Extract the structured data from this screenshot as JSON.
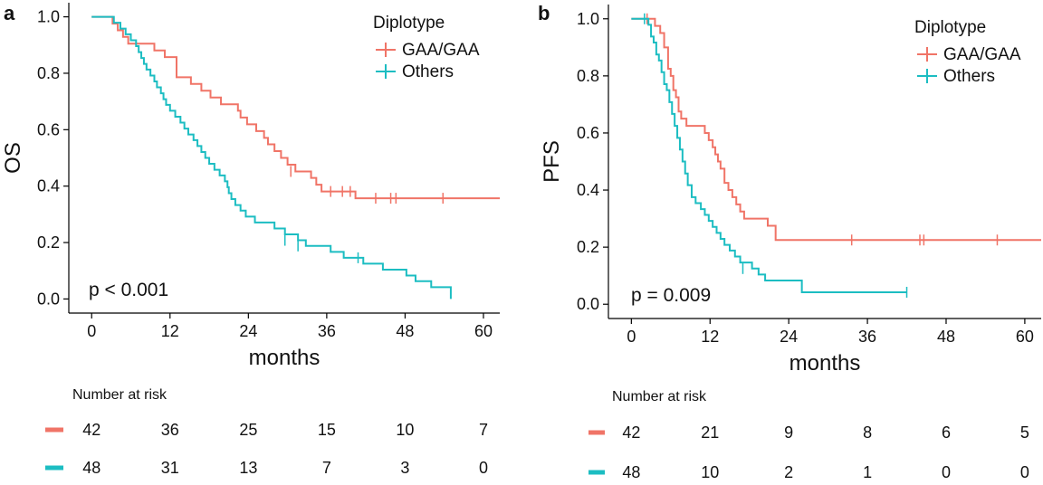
{
  "colors": {
    "gaa": "#F07467",
    "others": "#1CBDC2"
  },
  "chart_data": [
    {
      "type": "line",
      "panel": "a",
      "xlabel": "months",
      "ylabel": "OS",
      "xlim": [
        -3.5,
        62.5
      ],
      "ylim": [
        -0.05,
        1.05
      ],
      "x_ticks": [
        0,
        12,
        24,
        36,
        48,
        60
      ],
      "x_tick_labels": [
        "0",
        "12",
        "24",
        "36",
        "48",
        "60"
      ],
      "y_ticks": [
        0.0,
        0.2,
        0.4,
        0.6,
        0.8,
        1.0
      ],
      "y_tick_labels": [
        "0.0",
        "0.2",
        "0.4",
        "0.6",
        "0.8",
        "1.0"
      ],
      "legend_title": "Diplotype",
      "legend_position": "top-right",
      "p_value_text": "p < 0.001",
      "series": [
        {
          "name": "GAA/GAA",
          "color_key": "gaa",
          "steps": [
            [
              0,
              1.0
            ],
            [
              3.2,
              0.976
            ],
            [
              4.0,
              0.952
            ],
            [
              4.8,
              0.929
            ],
            [
              5.6,
              0.905
            ],
            [
              9.6,
              0.881
            ],
            [
              11.2,
              0.857
            ],
            [
              13.0,
              0.786
            ],
            [
              15.2,
              0.762
            ],
            [
              16.8,
              0.738
            ],
            [
              18.2,
              0.714
            ],
            [
              19.8,
              0.69
            ],
            [
              22.4,
              0.667
            ],
            [
              22.8,
              0.643
            ],
            [
              23.8,
              0.619
            ],
            [
              25.2,
              0.595
            ],
            [
              26.4,
              0.571
            ],
            [
              27.0,
              0.548
            ],
            [
              28.0,
              0.524
            ],
            [
              29.0,
              0.5
            ],
            [
              30.0,
              0.476
            ],
            [
              31.2,
              0.452
            ],
            [
              33.6,
              0.429
            ],
            [
              34.4,
              0.405
            ],
            [
              35.2,
              0.381
            ],
            [
              40.4,
              0.357
            ],
            [
              62.5,
              0.357
            ]
          ],
          "censor_marks": [
            [
              30.5,
              0.452
            ],
            [
              36.6,
              0.381
            ],
            [
              38.4,
              0.381
            ],
            [
              39.6,
              0.381
            ],
            [
              43.5,
              0.357
            ],
            [
              45.8,
              0.357
            ],
            [
              46.6,
              0.357
            ],
            [
              53.8,
              0.357
            ]
          ]
        },
        {
          "name": "Others",
          "color_key": "others",
          "steps": [
            [
              0,
              1.0
            ],
            [
              3.4,
              0.979
            ],
            [
              4.4,
              0.958
            ],
            [
              5.2,
              0.938
            ],
            [
              6.0,
              0.917
            ],
            [
              6.8,
              0.896
            ],
            [
              7.2,
              0.875
            ],
            [
              7.6,
              0.854
            ],
            [
              8.0,
              0.833
            ],
            [
              8.4,
              0.813
            ],
            [
              9.0,
              0.792
            ],
            [
              9.6,
              0.771
            ],
            [
              10.0,
              0.75
            ],
            [
              10.6,
              0.729
            ],
            [
              11.0,
              0.708
            ],
            [
              11.4,
              0.688
            ],
            [
              12.0,
              0.667
            ],
            [
              12.8,
              0.646
            ],
            [
              13.6,
              0.625
            ],
            [
              14.2,
              0.604
            ],
            [
              14.8,
              0.583
            ],
            [
              15.6,
              0.563
            ],
            [
              16.2,
              0.542
            ],
            [
              16.8,
              0.521
            ],
            [
              17.4,
              0.5
            ],
            [
              18.0,
              0.479
            ],
            [
              18.8,
              0.458
            ],
            [
              19.6,
              0.438
            ],
            [
              20.4,
              0.417
            ],
            [
              20.8,
              0.396
            ],
            [
              21.0,
              0.375
            ],
            [
              21.4,
              0.354
            ],
            [
              22.0,
              0.333
            ],
            [
              22.8,
              0.313
            ],
            [
              23.6,
              0.292
            ],
            [
              25.0,
              0.271
            ],
            [
              28.0,
              0.25
            ],
            [
              29.6,
              0.229
            ],
            [
              31.6,
              0.208
            ],
            [
              32.8,
              0.188
            ],
            [
              36.6,
              0.167
            ],
            [
              38.6,
              0.146
            ],
            [
              41.6,
              0.125
            ],
            [
              44.6,
              0.104
            ],
            [
              48.2,
              0.083
            ],
            [
              49.6,
              0.063
            ],
            [
              52.0,
              0.042
            ],
            [
              55.0,
              0.0
            ]
          ],
          "censor_marks": [
            [
              29.6,
              0.208
            ],
            [
              31.6,
              0.188
            ],
            [
              40.8,
              0.146
            ]
          ]
        }
      ],
      "risk_table": {
        "title": "Number at risk",
        "times": [
          0,
          12,
          24,
          36,
          48,
          60
        ],
        "rows": [
          {
            "name": "GAA/GAA",
            "color_key": "gaa",
            "values": [
              "42",
              "36",
              "25",
              "15",
              "10",
              "7"
            ]
          },
          {
            "name": "Others",
            "color_key": "others",
            "values": [
              "48",
              "31",
              "13",
              "7",
              "3",
              "0"
            ]
          }
        ]
      }
    },
    {
      "type": "line",
      "panel": "b",
      "xlabel": "months",
      "ylabel": "PFS",
      "xlim": [
        -3.5,
        62.5
      ],
      "ylim": [
        -0.05,
        1.05
      ],
      "x_ticks": [
        0,
        12,
        24,
        36,
        48,
        60
      ],
      "x_tick_labels": [
        "0",
        "12",
        "24",
        "36",
        "48",
        "60"
      ],
      "y_ticks": [
        0.0,
        0.2,
        0.4,
        0.6,
        0.8,
        1.0
      ],
      "y_tick_labels": [
        "0.0",
        "0.2",
        "0.4",
        "0.6",
        "0.8",
        "1.0"
      ],
      "legend_title": "Diplotype",
      "legend_position": "top-right",
      "p_value_text": "p = 0.009",
      "series": [
        {
          "name": "GAA/GAA",
          "color_key": "gaa",
          "steps": [
            [
              0,
              1.0
            ],
            [
              3.6,
              0.975
            ],
            [
              4.4,
              0.95
            ],
            [
              5.0,
              0.9
            ],
            [
              5.6,
              0.825
            ],
            [
              6.0,
              0.8
            ],
            [
              6.4,
              0.75
            ],
            [
              6.8,
              0.725
            ],
            [
              7.2,
              0.675
            ],
            [
              7.6,
              0.65
            ],
            [
              8.4,
              0.625
            ],
            [
              11.2,
              0.6
            ],
            [
              11.8,
              0.575
            ],
            [
              12.4,
              0.55
            ],
            [
              12.8,
              0.525
            ],
            [
              13.2,
              0.5
            ],
            [
              13.6,
              0.475
            ],
            [
              14.2,
              0.425
            ],
            [
              14.8,
              0.4
            ],
            [
              15.4,
              0.375
            ],
            [
              16.0,
              0.35
            ],
            [
              16.6,
              0.325
            ],
            [
              17.2,
              0.3
            ],
            [
              20.8,
              0.275
            ],
            [
              22.0,
              0.225
            ],
            [
              62.5,
              0.225
            ]
          ],
          "censor_marks": [
            [
              2.4,
              1.0
            ],
            [
              33.6,
              0.225
            ],
            [
              44.0,
              0.225
            ],
            [
              44.6,
              0.225
            ],
            [
              55.8,
              0.225
            ]
          ]
        },
        {
          "name": "Others",
          "color_key": "others",
          "steps": [
            [
              0,
              1.0
            ],
            [
              2.6,
              0.979
            ],
            [
              3.0,
              0.938
            ],
            [
              3.4,
              0.917
            ],
            [
              3.8,
              0.875
            ],
            [
              4.2,
              0.854
            ],
            [
              4.6,
              0.813
            ],
            [
              5.0,
              0.771
            ],
            [
              5.4,
              0.75
            ],
            [
              5.8,
              0.708
            ],
            [
              6.2,
              0.667
            ],
            [
              6.6,
              0.625
            ],
            [
              7.0,
              0.583
            ],
            [
              7.4,
              0.542
            ],
            [
              7.8,
              0.5
            ],
            [
              8.2,
              0.458
            ],
            [
              8.6,
              0.417
            ],
            [
              9.2,
              0.375
            ],
            [
              9.8,
              0.354
            ],
            [
              10.6,
              0.333
            ],
            [
              11.2,
              0.313
            ],
            [
              11.8,
              0.292
            ],
            [
              12.4,
              0.271
            ],
            [
              13.0,
              0.25
            ],
            [
              13.6,
              0.229
            ],
            [
              14.2,
              0.208
            ],
            [
              15.0,
              0.188
            ],
            [
              15.8,
              0.167
            ],
            [
              16.6,
              0.146
            ],
            [
              18.4,
              0.125
            ],
            [
              19.4,
              0.104
            ],
            [
              20.4,
              0.083
            ],
            [
              26.0,
              0.042
            ],
            [
              42.0,
              0.042
            ]
          ],
          "censor_marks": [
            [
              2.0,
              1.0
            ],
            [
              17.0,
              0.125
            ],
            [
              42.0,
              0.042
            ]
          ]
        }
      ],
      "risk_table": {
        "title": "Number at risk",
        "times": [
          0,
          12,
          24,
          36,
          48,
          60
        ],
        "rows": [
          {
            "name": "GAA/GAA",
            "color_key": "gaa",
            "values": [
              "42",
              "21",
              "9",
              "8",
              "6",
              "5"
            ]
          },
          {
            "name": "Others",
            "color_key": "others",
            "values": [
              "48",
              "10",
              "2",
              "1",
              "0",
              "0"
            ]
          }
        ]
      }
    }
  ]
}
